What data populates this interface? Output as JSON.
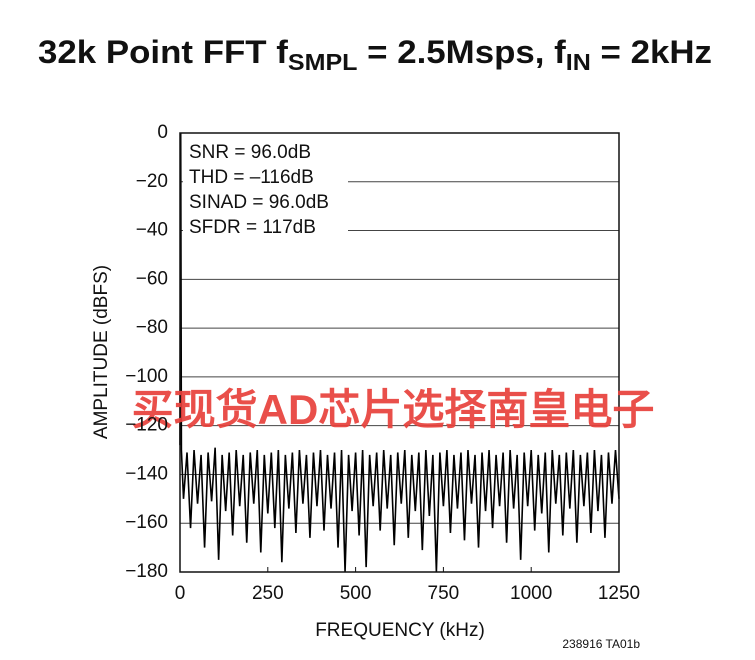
{
  "chart_data": {
    "type": "line",
    "title_parts": [
      "32k Point FFT f",
      "SMPL",
      " = 2.5Msps, f",
      "IN",
      " = 2kHz"
    ],
    "annotations": [
      "SNR = 96.0dB",
      "THD = –116dB",
      "SINAD = 96.0dB",
      "SFDR = 117dB"
    ],
    "xlabel": "FREQUENCY (kHz)",
    "ylabel": "AMPLITUDE (dBFS)",
    "watermark": "买现货AD芯片选择南皇电子",
    "footnote": "238916 TA01b",
    "color": "#000000",
    "grid": true,
    "xlim": [
      0,
      1250
    ],
    "xticks": [
      0,
      250,
      500,
      750,
      1000,
      1250
    ],
    "ylim": [
      -180,
      0
    ],
    "yticks": [
      0,
      {
        "value": -20,
        "label": "−20"
      },
      {
        "value": -40,
        "label": "−40"
      },
      {
        "value": -60,
        "label": "−60"
      },
      {
        "value": -80,
        "label": "−80"
      },
      {
        "value": -100,
        "label": "−100"
      },
      {
        "value": -120,
        "label": "−120"
      },
      {
        "value": -140,
        "label": "−140"
      },
      {
        "value": -160,
        "label": "−160"
      },
      {
        "value": -180,
        "label": "−180"
      }
    ],
    "x": [
      0,
      2,
      4,
      10,
      20,
      30,
      40,
      50,
      60,
      70,
      80,
      90,
      100,
      110,
      120,
      130,
      140,
      150,
      160,
      170,
      180,
      190,
      200,
      210,
      220,
      230,
      240,
      250,
      260,
      270,
      280,
      290,
      300,
      310,
      320,
      330,
      340,
      350,
      360,
      370,
      380,
      390,
      400,
      410,
      420,
      430,
      440,
      450,
      460,
      470,
      480,
      490,
      500,
      510,
      520,
      530,
      540,
      550,
      560,
      570,
      580,
      590,
      600,
      610,
      620,
      630,
      640,
      650,
      660,
      670,
      680,
      690,
      700,
      710,
      720,
      730,
      740,
      750,
      760,
      770,
      780,
      790,
      800,
      810,
      820,
      830,
      840,
      850,
      860,
      870,
      880,
      890,
      900,
      910,
      920,
      930,
      940,
      950,
      960,
      970,
      980,
      990,
      1000,
      1010,
      1020,
      1030,
      1040,
      1050,
      1060,
      1070,
      1080,
      1090,
      1100,
      1110,
      1120,
      1130,
      1140,
      1150,
      1160,
      1170,
      1180,
      1190,
      1200,
      1210,
      1220,
      1230,
      1240,
      1250
    ],
    "values": [
      -128,
      0,
      -130,
      -150,
      -131,
      -162,
      -130,
      -152,
      -132,
      -170,
      -131,
      -151,
      -129,
      -175,
      -132,
      -155,
      -131,
      -165,
      -130,
      -153,
      -132,
      -168,
      -131,
      -152,
      -130,
      -172,
      -132,
      -156,
      -131,
      -162,
      -130,
      -176,
      -132,
      -154,
      -131,
      -164,
      -130,
      -152,
      -132,
      -166,
      -131,
      -153,
      -130,
      -163,
      -132,
      -154,
      -131,
      -170,
      -130,
      -180,
      -132,
      -155,
      -131,
      -165,
      -130,
      -178,
      -132,
      -153,
      -131,
      -163,
      -130,
      -154,
      -132,
      -169,
      -131,
      -152,
      -130,
      -166,
      -132,
      -155,
      -131,
      -171,
      -130,
      -157,
      -132,
      -180,
      -131,
      -153,
      -130,
      -164,
      -132,
      -154,
      -131,
      -167,
      -130,
      -152,
      -132,
      -170,
      -131,
      -155,
      -130,
      -162,
      -132,
      -153,
      -131,
      -168,
      -130,
      -154,
      -132,
      -175,
      -131,
      -153,
      -130,
      -163,
      -132,
      -156,
      -131,
      -172,
      -130,
      -152,
      -132,
      -165,
      -131,
      -154,
      -130,
      -168,
      -132,
      -153,
      -131,
      -164,
      -130,
      -155,
      -132,
      -166,
      -131,
      -152,
      -130,
      -150
    ]
  }
}
